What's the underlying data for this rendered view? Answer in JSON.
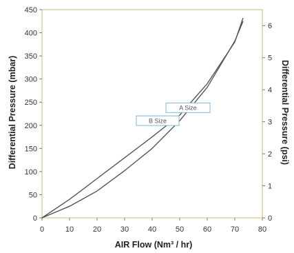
{
  "chart_data": {
    "type": "line",
    "xlabel": "AIR Flow (Nm³ / hr)",
    "ylabel": "Differential Pressure (mbar)",
    "y2label": "Differential Pressure (psi)",
    "xlim": [
      0,
      80
    ],
    "ylim": [
      0,
      450
    ],
    "y2lim": [
      0,
      6.5
    ],
    "xticks": [
      0,
      10,
      20,
      30,
      40,
      50,
      60,
      70,
      80
    ],
    "yticks": [
      0,
      50,
      100,
      150,
      200,
      250,
      300,
      350,
      400,
      450
    ],
    "y2ticks": [
      0,
      1,
      2,
      3,
      4,
      5,
      6
    ],
    "grid": false,
    "frame_color": "#d9c98a",
    "line_color": "#555555",
    "series": [
      {
        "name": "B Size",
        "x": [
          0,
          10,
          20,
          30,
          40,
          50,
          60,
          70,
          73
        ],
        "y": [
          0,
          40,
          85,
          130,
          175,
          222,
          290,
          380,
          432
        ]
      },
      {
        "name": "A Size",
        "x": [
          0,
          10,
          20,
          30,
          40,
          50,
          60,
          70,
          73
        ],
        "y": [
          0,
          25,
          58,
          102,
          150,
          210,
          282,
          382,
          425
        ]
      }
    ]
  }
}
